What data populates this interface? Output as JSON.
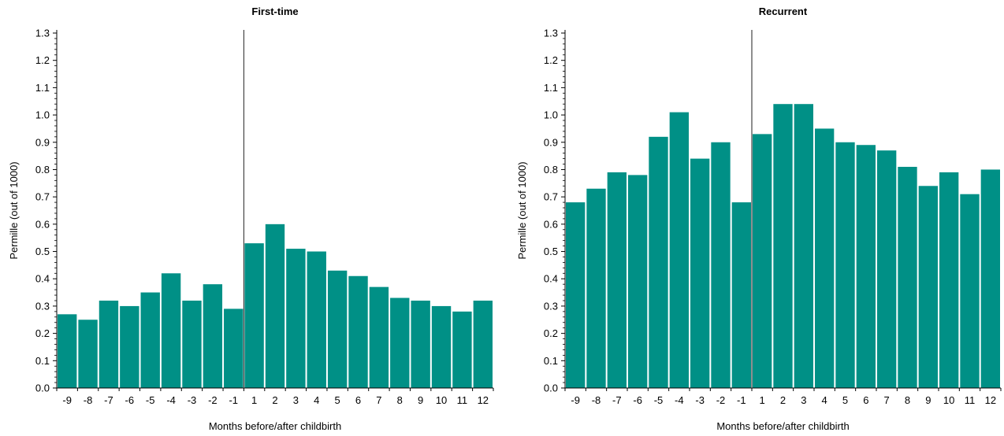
{
  "chart_data": [
    {
      "type": "bar",
      "title": "First-time",
      "xlabel": "Months before/after childbirth",
      "ylabel": "Permille (out of 1000)",
      "ylim": [
        0,
        1.3
      ],
      "yticks": [
        "0.0",
        "0.1",
        "0.2",
        "0.3",
        "0.4",
        "0.5",
        "0.6",
        "0.7",
        "0.8",
        "0.9",
        "1.0",
        "1.1",
        "1.2",
        "1.3"
      ],
      "categories": [
        "-9",
        "-8",
        "-7",
        "-6",
        "-5",
        "-4",
        "-3",
        "-2",
        "-1",
        "1",
        "2",
        "3",
        "4",
        "5",
        "6",
        "7",
        "8",
        "9",
        "10",
        "11",
        "12"
      ],
      "values": [
        0.27,
        0.25,
        0.32,
        0.3,
        0.35,
        0.42,
        0.32,
        0.38,
        0.29,
        0.53,
        0.6,
        0.51,
        0.5,
        0.43,
        0.41,
        0.37,
        0.33,
        0.32,
        0.3,
        0.28,
        0.32
      ],
      "childbirth_marker_between": [
        "-1",
        "1"
      ],
      "color": "#009086",
      "grid": false
    },
    {
      "type": "bar",
      "title": "Recurrent",
      "xlabel": "Months before/after childbirth",
      "ylabel": "Permille (out of 1000)",
      "ylim": [
        0,
        1.3
      ],
      "yticks": [
        "0.0",
        "0.1",
        "0.2",
        "0.3",
        "0.4",
        "0.5",
        "0.6",
        "0.7",
        "0.8",
        "0.9",
        "1.0",
        "1.1",
        "1.2",
        "1.3"
      ],
      "categories": [
        "-9",
        "-8",
        "-7",
        "-6",
        "-5",
        "-4",
        "-3",
        "-2",
        "-1",
        "1",
        "2",
        "3",
        "4",
        "5",
        "6",
        "7",
        "8",
        "9",
        "10",
        "11",
        "12"
      ],
      "values": [
        0.68,
        0.73,
        0.79,
        0.78,
        0.92,
        1.01,
        0.84,
        0.9,
        0.68,
        0.93,
        1.04,
        1.04,
        0.95,
        0.9,
        0.89,
        0.87,
        0.81,
        0.74,
        0.79,
        0.71,
        0.8
      ],
      "childbirth_marker_between": [
        "-1",
        "1"
      ],
      "color": "#009086",
      "grid": false
    }
  ]
}
